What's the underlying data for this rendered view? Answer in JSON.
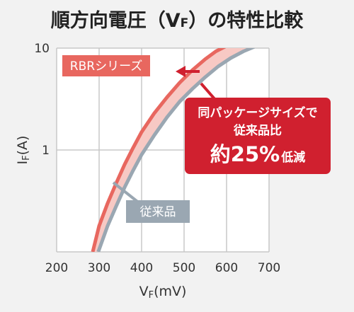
{
  "colors": {
    "background": "#f2f2f2",
    "plot_bg": "#ffffff",
    "grid": "#c8c8c8",
    "rbr": "#e8675f",
    "band": "#f7c9c4",
    "conventional": "#9aa7b2",
    "callout_bg": "#d0202f",
    "arrow": "#d0202f"
  },
  "chart_data": {
    "type": "line",
    "title": "順方向電圧（VF）の特性比較",
    "title_main": "順方向電圧（V",
    "title_sub": "F",
    "title_end": "）の特性比較",
    "xlabel_main": "V",
    "xlabel_sub": "F",
    "xlabel_unit": "(mV)",
    "ylabel_main": "I",
    "ylabel_sub": "F",
    "ylabel_unit": "(A)",
    "xlim": [
      200,
      700
    ],
    "ylim": [
      0.1,
      10
    ],
    "yscale": "log",
    "grid": true,
    "xticks": [
      {
        "value": 200,
        "label": "200"
      },
      {
        "value": 300,
        "label": "300"
      },
      {
        "value": 400,
        "label": "400"
      },
      {
        "value": 500,
        "label": "500"
      },
      {
        "value": 600,
        "label": "600"
      },
      {
        "value": 700,
        "label": "700"
      }
    ],
    "yticks": [
      {
        "value": 1,
        "label": "1"
      },
      {
        "value": 10,
        "label": "10"
      }
    ],
    "series": [
      {
        "name": "RBRシリーズ",
        "color": "#e8675f",
        "x": [
          285,
          300,
          320,
          340,
          360,
          380,
          400,
          430,
          460,
          490,
          520,
          550,
          575,
          600
        ],
        "y": [
          0.1,
          0.18,
          0.3,
          0.47,
          0.72,
          1.05,
          1.5,
          2.3,
          3.3,
          4.6,
          6.1,
          7.8,
          9.3,
          10.5
        ]
      },
      {
        "name": "従来品",
        "color": "#9aa7b2",
        "x": [
          298,
          320,
          340,
          360,
          380,
          400,
          430,
          460,
          490,
          520,
          550,
          580,
          610,
          640,
          665
        ],
        "y": [
          0.1,
          0.18,
          0.28,
          0.43,
          0.63,
          0.9,
          1.4,
          2.1,
          3.0,
          4.0,
          5.2,
          6.6,
          8.0,
          9.3,
          10.3
        ]
      }
    ],
    "annotation": {
      "line1": "同パッケージサイズで",
      "line2": "従来品比",
      "line3_big": "約25%",
      "line3_small": "低減"
    }
  }
}
